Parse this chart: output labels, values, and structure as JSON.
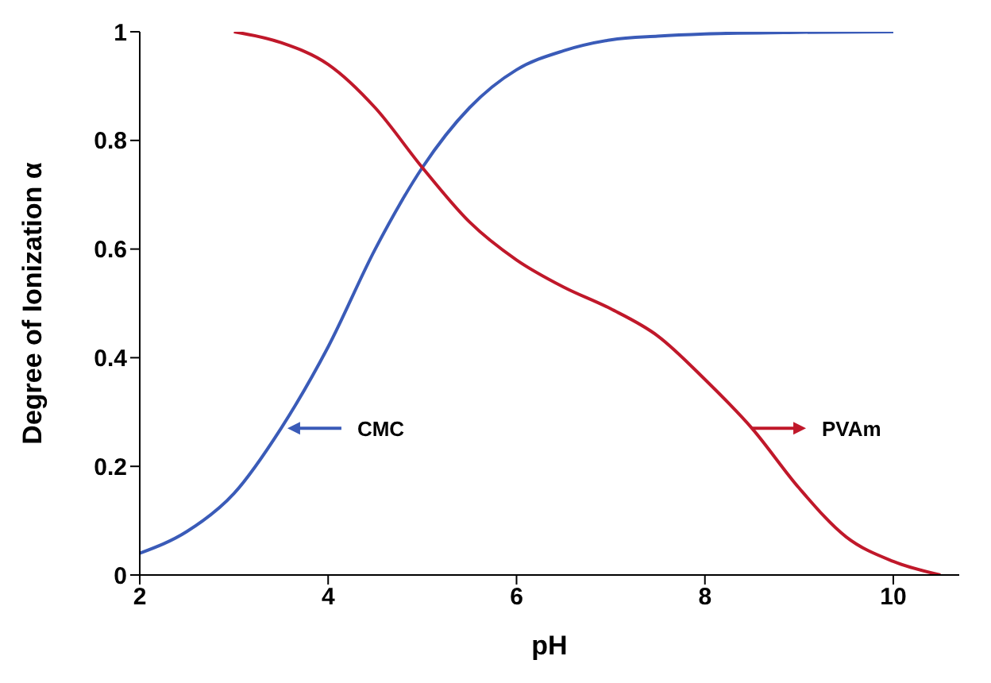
{
  "chart_data": {
    "type": "line",
    "xlabel": "pH",
    "ylabel": "Degree of Ionization α",
    "xlim": [
      2,
      10.7
    ],
    "xticks": [
      2,
      4,
      6,
      8,
      10
    ],
    "ylim": [
      0,
      1
    ],
    "yticks": [
      0,
      0.2,
      0.4,
      0.6,
      0.8,
      1
    ],
    "grid": false,
    "legend": "bottom",
    "marker": "none",
    "line_style": "solid",
    "series": [
      {
        "name": "CMC",
        "color": "#3a5bb8",
        "x": [
          2,
          2.5,
          3,
          3.5,
          4,
          4.5,
          5,
          5.5,
          6,
          6.5,
          7,
          7.5,
          8,
          9,
          10
        ],
        "values": [
          0.04,
          0.08,
          0.15,
          0.27,
          0.42,
          0.6,
          0.75,
          0.86,
          0.93,
          0.965,
          0.985,
          0.992,
          0.996,
          0.999,
          1
        ]
      },
      {
        "name": "PVAm",
        "color": "#c0182a",
        "x": [
          3,
          3.5,
          4,
          4.5,
          5,
          5.5,
          6,
          6.5,
          7,
          7.5,
          8,
          8.5,
          9,
          9.5,
          10,
          10.5
        ],
        "values": [
          1,
          0.98,
          0.94,
          0.86,
          0.75,
          0.65,
          0.58,
          0.53,
          0.49,
          0.44,
          0.36,
          0.27,
          0.16,
          0.07,
          0.025,
          0
        ]
      }
    ]
  }
}
